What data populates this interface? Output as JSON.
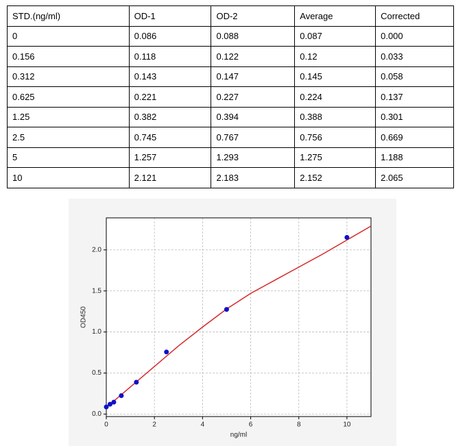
{
  "table": {
    "header": [
      "STD.(ng/ml)",
      "OD-1",
      "OD-2",
      "Average",
      "Corrected"
    ],
    "rows": [
      [
        "0",
        "0.086",
        "0.088",
        "0.087",
        "0.000"
      ],
      [
        "0.156",
        "0.118",
        "0.122",
        "0.12",
        "0.033"
      ],
      [
        "0.312",
        "0.143",
        "0.147",
        "0.145",
        "0.058"
      ],
      [
        "0.625",
        "0.221",
        "0.227",
        "0.224",
        "0.137"
      ],
      [
        "1.25",
        "0.382",
        "0.394",
        "0.388",
        "0.301"
      ],
      [
        "2.5",
        "0.745",
        "0.767",
        "0.756",
        "0.669"
      ],
      [
        "5",
        "1.257",
        "1.293",
        "1.275",
        "1.188"
      ],
      [
        "10",
        "2.121",
        "2.183",
        "2.152",
        "2.065"
      ]
    ]
  },
  "chart_data": {
    "type": "scatter",
    "x_label": "ng/ml",
    "y_label": "OD450",
    "series": [
      {
        "mode": "line",
        "color": "#d62728",
        "x": [
          0,
          1,
          2,
          3,
          4,
          5,
          6,
          7,
          8,
          9,
          10,
          11
        ],
        "values": [
          0.08,
          0.33,
          0.58,
          0.83,
          1.06,
          1.28,
          1.47,
          1.63,
          1.79,
          1.95,
          2.12,
          2.29
        ]
      },
      {
        "mode": "markers",
        "color": "#1010c8",
        "x": [
          0,
          0.156,
          0.312,
          0.625,
          1.25,
          2.5,
          5,
          10
        ],
        "values": [
          0.087,
          0.12,
          0.145,
          0.224,
          0.388,
          0.756,
          1.275,
          2.152
        ]
      }
    ],
    "xlim": [
      0,
      11
    ],
    "ylim": [
      -0.03,
      2.39
    ],
    "xticks": [
      0,
      2,
      4,
      6,
      8,
      10
    ],
    "yticks": [
      {
        "value": 0,
        "label": "0.0"
      },
      0.5,
      {
        "value": 1,
        "label": "1.0"
      },
      1.5,
      {
        "value": 2,
        "label": "2.0"
      }
    ],
    "grid": true
  }
}
